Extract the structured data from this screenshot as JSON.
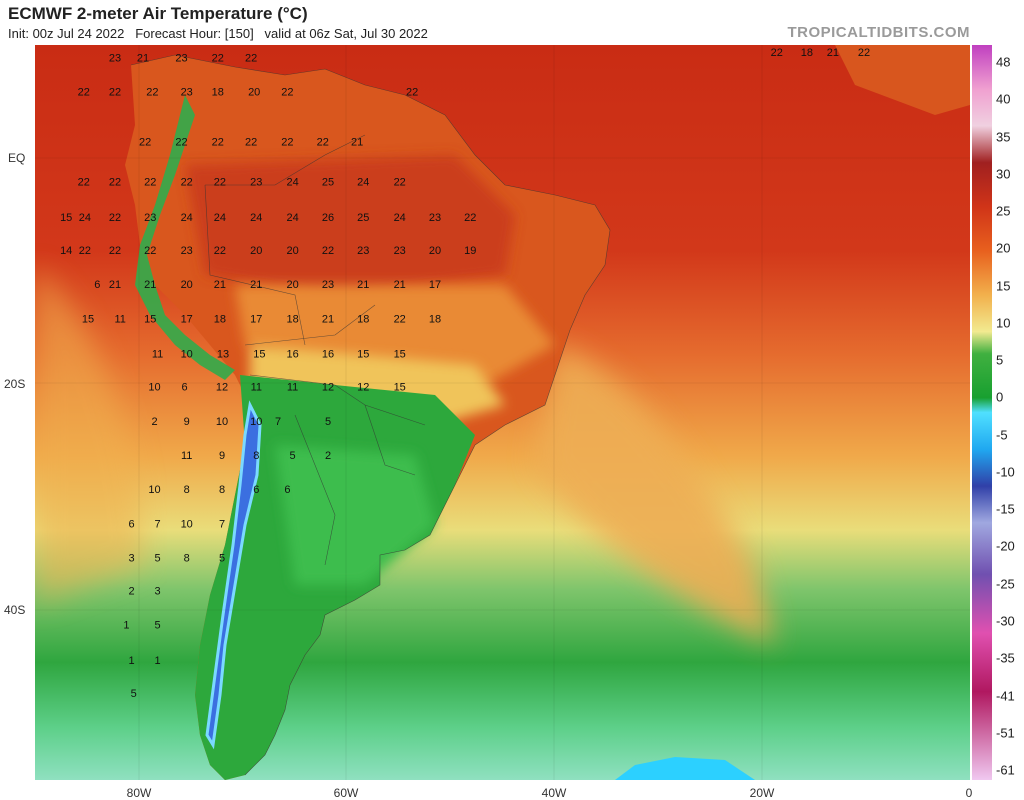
{
  "header": {
    "title": "ECMWF 2-meter Air Temperature (°C)",
    "subtitle": "Init: 00z Jul 24 2022   Forecast Hour: [150]   valid at 06z Sat, Jul 30 2022",
    "watermark": "TROPICALTIDBITS.COM"
  },
  "axes": {
    "lat_labels": [
      "EQ",
      "20S",
      "40S"
    ],
    "lon_labels": [
      "80W",
      "60W",
      "40W",
      "20W",
      "0"
    ]
  },
  "colorbar": {
    "labels": [
      "48",
      "40",
      "35",
      "30",
      "25",
      "20",
      "15",
      "10",
      "5",
      "0",
      "-5",
      "-10",
      "-15",
      "-20",
      "-25",
      "-30",
      "-35",
      "-41",
      "-51",
      "-61"
    ],
    "colors": [
      "#ff6e9e",
      "#ffb0c8",
      "#d9d0e8",
      "#c060c8",
      "#b03030",
      "#d03418",
      "#e8601e",
      "#f2a03c",
      "#f5d868",
      "#f2e88a",
      "#48b848",
      "#1e9a30",
      "#20d8ff",
      "#3070e0",
      "#3040a0",
      "#9090d0",
      "#8050b0",
      "#e060b0",
      "#c02070",
      "#e0b0e0"
    ]
  },
  "map": {
    "temperature_labels": [
      {
        "t": "23",
        "lon": -82.3,
        "lat": 9.8
      },
      {
        "t": "21",
        "lon": -79.6,
        "lat": 9.8
      },
      {
        "t": "23",
        "lon": -75.9,
        "lat": 9.8
      },
      {
        "t": "22",
        "lon": -72.4,
        "lat": 9.8
      },
      {
        "t": "22",
        "lon": -69.2,
        "lat": 9.8
      },
      {
        "t": "22",
        "lon": -85.3,
        "lat": 6.5
      },
      {
        "t": "22",
        "lon": -82.3,
        "lat": 6.5
      },
      {
        "t": "22",
        "lon": -78.7,
        "lat": 6.5
      },
      {
        "t": "23",
        "lon": -75.4,
        "lat": 6.5
      },
      {
        "t": "18",
        "lon": -72.4,
        "lat": 6.5
      },
      {
        "t": "20",
        "lon": -68.9,
        "lat": 6.5
      },
      {
        "t": "22",
        "lon": -65.7,
        "lat": 6.5
      },
      {
        "t": "22",
        "lon": -53.7,
        "lat": 6.5
      },
      {
        "t": "22",
        "lon": -79.4,
        "lat": 1.7
      },
      {
        "t": "22",
        "lon": -75.9,
        "lat": 1.7
      },
      {
        "t": "22",
        "lon": -72.4,
        "lat": 1.7
      },
      {
        "t": "22",
        "lon": -69.2,
        "lat": 1.7
      },
      {
        "t": "22",
        "lon": -65.7,
        "lat": 1.7
      },
      {
        "t": "22",
        "lon": -62.3,
        "lat": 1.7
      },
      {
        "t": "21",
        "lon": -59.0,
        "lat": 1.7
      },
      {
        "t": "22",
        "lon": -85.3,
        "lat": -2.2
      },
      {
        "t": "22",
        "lon": -82.3,
        "lat": -2.2
      },
      {
        "t": "22",
        "lon": -78.9,
        "lat": -2.2
      },
      {
        "t": "22",
        "lon": -75.4,
        "lat": -2.2
      },
      {
        "t": "22",
        "lon": -72.2,
        "lat": -2.2
      },
      {
        "t": "23",
        "lon": -68.7,
        "lat": -2.2
      },
      {
        "t": "24",
        "lon": -65.2,
        "lat": -2.2
      },
      {
        "t": "25",
        "lon": -61.8,
        "lat": -2.2
      },
      {
        "t": "24",
        "lon": -58.4,
        "lat": -2.2
      },
      {
        "t": "22",
        "lon": -54.9,
        "lat": -2.2
      },
      {
        "t": "15",
        "lon": -87.0,
        "lat": -5.6
      },
      {
        "t": "24",
        "lon": -85.2,
        "lat": -5.6
      },
      {
        "t": "22",
        "lon": -82.3,
        "lat": -5.6
      },
      {
        "t": "23",
        "lon": -78.9,
        "lat": -5.6
      },
      {
        "t": "24",
        "lon": -75.4,
        "lat": -5.6
      },
      {
        "t": "24",
        "lon": -72.2,
        "lat": -5.6
      },
      {
        "t": "24",
        "lon": -68.7,
        "lat": -5.6
      },
      {
        "t": "24",
        "lon": -65.2,
        "lat": -5.6
      },
      {
        "t": "26",
        "lon": -61.8,
        "lat": -5.6
      },
      {
        "t": "25",
        "lon": -58.4,
        "lat": -5.6
      },
      {
        "t": "24",
        "lon": -54.9,
        "lat": -5.6
      },
      {
        "t": "23",
        "lon": -51.5,
        "lat": -5.6
      },
      {
        "t": "22",
        "lon": -48.1,
        "lat": -5.6
      },
      {
        "t": "14",
        "lon": -87.0,
        "lat": -8.8
      },
      {
        "t": "22",
        "lon": -85.2,
        "lat": -8.8
      },
      {
        "t": "22",
        "lon": -82.3,
        "lat": -8.8
      },
      {
        "t": "22",
        "lon": -78.9,
        "lat": -8.8
      },
      {
        "t": "23",
        "lon": -75.4,
        "lat": -8.8
      },
      {
        "t": "22",
        "lon": -72.2,
        "lat": -8.8
      },
      {
        "t": "20",
        "lon": -68.7,
        "lat": -8.8
      },
      {
        "t": "20",
        "lon": -65.2,
        "lat": -8.8
      },
      {
        "t": "22",
        "lon": -61.8,
        "lat": -8.8
      },
      {
        "t": "23",
        "lon": -58.4,
        "lat": -8.8
      },
      {
        "t": "23",
        "lon": -54.9,
        "lat": -8.8
      },
      {
        "t": "20",
        "lon": -51.5,
        "lat": -8.8
      },
      {
        "t": "19",
        "lon": -48.1,
        "lat": -8.8
      },
      {
        "t": "6",
        "lon": -84.0,
        "lat": -12.1
      },
      {
        "t": "21",
        "lon": -82.3,
        "lat": -12.1
      },
      {
        "t": "21",
        "lon": -78.9,
        "lat": -12.1
      },
      {
        "t": "20",
        "lon": -75.4,
        "lat": -12.1
      },
      {
        "t": "21",
        "lon": -72.2,
        "lat": -12.1
      },
      {
        "t": "21",
        "lon": -68.7,
        "lat": -12.1
      },
      {
        "t": "20",
        "lon": -65.2,
        "lat": -12.1
      },
      {
        "t": "23",
        "lon": -61.8,
        "lat": -12.1
      },
      {
        "t": "21",
        "lon": -58.4,
        "lat": -12.1
      },
      {
        "t": "21",
        "lon": -54.9,
        "lat": -12.1
      },
      {
        "t": "17",
        "lon": -51.5,
        "lat": -12.1
      },
      {
        "t": "15",
        "lon": -84.9,
        "lat": -15.4
      },
      {
        "t": "11",
        "lon": -81.8,
        "lat": -15.4
      },
      {
        "t": "15",
        "lon": -78.9,
        "lat": -15.4
      },
      {
        "t": "17",
        "lon": -75.4,
        "lat": -15.4
      },
      {
        "t": "18",
        "lon": -72.2,
        "lat": -15.4
      },
      {
        "t": "17",
        "lon": -68.7,
        "lat": -15.4
      },
      {
        "t": "18",
        "lon": -65.2,
        "lat": -15.4
      },
      {
        "t": "21",
        "lon": -61.8,
        "lat": -15.4
      },
      {
        "t": "18",
        "lon": -58.4,
        "lat": -15.4
      },
      {
        "t": "22",
        "lon": -54.9,
        "lat": -15.4
      },
      {
        "t": "18",
        "lon": -51.5,
        "lat": -15.4
      },
      {
        "t": "11",
        "lon": -78.2,
        "lat": -18.8
      },
      {
        "t": "10",
        "lon": -75.4,
        "lat": -18.8
      },
      {
        "t": "13",
        "lon": -71.9,
        "lat": -18.8
      },
      {
        "t": "15",
        "lon": -68.4,
        "lat": -18.8
      },
      {
        "t": "16",
        "lon": -65.2,
        "lat": -18.8
      },
      {
        "t": "16",
        "lon": -61.8,
        "lat": -18.8
      },
      {
        "t": "15",
        "lon": -58.4,
        "lat": -18.8
      },
      {
        "t": "15",
        "lon": -54.9,
        "lat": -18.8
      },
      {
        "t": "10",
        "lon": -78.5,
        "lat": -22.0
      },
      {
        "t": "6",
        "lon": -75.6,
        "lat": -22.0
      },
      {
        "t": "12",
        "lon": -72.0,
        "lat": -22.0
      },
      {
        "t": "11",
        "lon": -68.7,
        "lat": -22.0
      },
      {
        "t": "11",
        "lon": -65.2,
        "lat": -22.0
      },
      {
        "t": "12",
        "lon": -61.8,
        "lat": -22.0
      },
      {
        "t": "12",
        "lon": -58.4,
        "lat": -22.0
      },
      {
        "t": "15",
        "lon": -54.9,
        "lat": -22.0
      },
      {
        "t": "2",
        "lon": -78.5,
        "lat": -25.3
      },
      {
        "t": "9",
        "lon": -75.4,
        "lat": -25.3
      },
      {
        "t": "10",
        "lon": -72.0,
        "lat": -25.3
      },
      {
        "t": "10",
        "lon": -68.7,
        "lat": -25.3
      },
      {
        "t": "7",
        "lon": -66.6,
        "lat": -25.3
      },
      {
        "t": "5",
        "lon": -61.8,
        "lat": -25.3
      },
      {
        "t": "11",
        "lon": -75.4,
        "lat": -28.6
      },
      {
        "t": "9",
        "lon": -72.0,
        "lat": -28.6
      },
      {
        "t": "8",
        "lon": -68.7,
        "lat": -28.6
      },
      {
        "t": "5",
        "lon": -65.2,
        "lat": -28.6
      },
      {
        "t": "2",
        "lon": -61.8,
        "lat": -28.6
      },
      {
        "t": "10",
        "lon": -78.5,
        "lat": -31.9
      },
      {
        "t": "8",
        "lon": -75.4,
        "lat": -31.9
      },
      {
        "t": "8",
        "lon": -72.0,
        "lat": -31.9
      },
      {
        "t": "6",
        "lon": -68.7,
        "lat": -31.9
      },
      {
        "t": "6",
        "lon": -65.7,
        "lat": -31.9
      },
      {
        "t": "6",
        "lon": -80.7,
        "lat": -35.2
      },
      {
        "t": "7",
        "lon": -78.2,
        "lat": -35.2
      },
      {
        "t": "10",
        "lon": -75.4,
        "lat": -35.2
      },
      {
        "t": "7",
        "lon": -72.0,
        "lat": -35.2
      },
      {
        "t": "3",
        "lon": -80.7,
        "lat": -38.5
      },
      {
        "t": "5",
        "lon": -78.2,
        "lat": -38.5
      },
      {
        "t": "8",
        "lon": -75.4,
        "lat": -38.5
      },
      {
        "t": "5",
        "lon": -72.0,
        "lat": -38.5
      },
      {
        "t": "2",
        "lon": -80.7,
        "lat": -41.7
      },
      {
        "t": "3",
        "lon": -78.2,
        "lat": -41.7
      },
      {
        "t": "1",
        "lon": -81.2,
        "lat": -45.0
      },
      {
        "t": "5",
        "lon": -78.2,
        "lat": -45.0
      },
      {
        "t": "1",
        "lon": -80.7,
        "lat": -48.4
      },
      {
        "t": "1",
        "lon": -78.2,
        "lat": -48.4
      },
      {
        "t": "5",
        "lon": -80.5,
        "lat": -51.6
      },
      {
        "t": "22",
        "lon": -18.6,
        "lat": 10.3
      },
      {
        "t": "18",
        "lon": -15.7,
        "lat": 10.3
      },
      {
        "t": "21",
        "lon": -13.2,
        "lat": 10.3
      },
      {
        "t": "22",
        "lon": -10.2,
        "lat": 10.3
      }
    ]
  }
}
